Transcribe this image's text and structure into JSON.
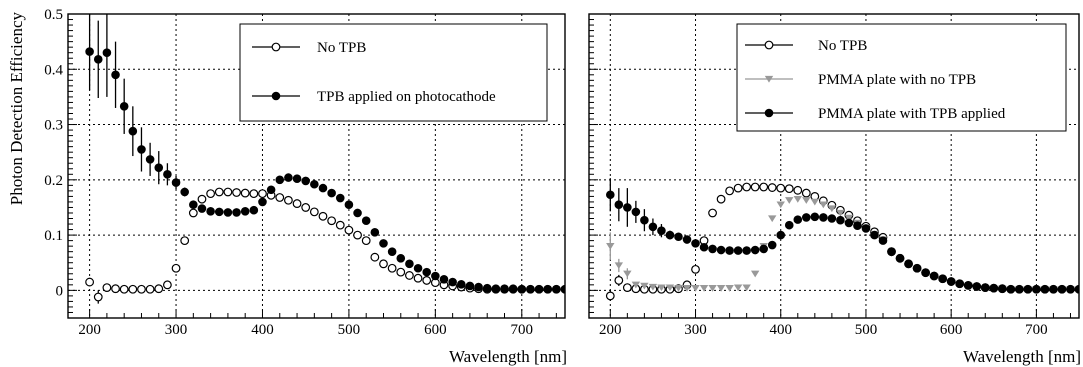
{
  "chart_data": [
    {
      "type": "scatter",
      "ylabel": "Photon Detection Efficiency",
      "xlabel": "Wavelength [nm]",
      "xlim": [
        175,
        750
      ],
      "ylim": [
        -0.05,
        0.5
      ],
      "xticks": [
        200,
        300,
        400,
        500,
        600,
        700
      ],
      "yticks": [
        0,
        0.1,
        0.2,
        0.3,
        0.4,
        0.5
      ],
      "ytick_labels": [
        "0",
        "0.1",
        "0.2",
        "0.3",
        "0.4",
        "0.5"
      ],
      "grid": "horizontal dotted",
      "legend_position": "top-right",
      "series": [
        {
          "name": "No TPB",
          "marker": "open-circle",
          "color": "#000000",
          "x": [
            200,
            210,
            220,
            230,
            240,
            250,
            260,
            270,
            280,
            290,
            300,
            310,
            320,
            330,
            340,
            350,
            360,
            370,
            380,
            390,
            400,
            410,
            420,
            430,
            440,
            450,
            460,
            470,
            480,
            490,
            500,
            510,
            520,
            530,
            540,
            550,
            560,
            570,
            580,
            590,
            600,
            610,
            620,
            630,
            640,
            650,
            660,
            670,
            680,
            690,
            700,
            710,
            720,
            730,
            740,
            750
          ],
          "y": [
            0.015,
            -0.012,
            0.005,
            0.003,
            0.002,
            0.002,
            0.002,
            0.002,
            0.003,
            0.01,
            0.04,
            0.09,
            0.14,
            0.165,
            0.175,
            0.178,
            0.178,
            0.177,
            0.176,
            0.175,
            0.175,
            0.172,
            0.168,
            0.163,
            0.157,
            0.15,
            0.142,
            0.134,
            0.126,
            0.118,
            0.109,
            0.1,
            0.09,
            0.06,
            0.048,
            0.04,
            0.033,
            0.027,
            0.022,
            0.018,
            0.014,
            0.01,
            0.008,
            0.006,
            0.004,
            0.003,
            0.002,
            0.002,
            0.002,
            0.002,
            0.002,
            0.002,
            0.002,
            0.002,
            0.002,
            0.002
          ],
          "yerr": [
            0.007,
            0.012,
            0.006,
            0.003,
            0.002,
            0.002,
            0.002,
            0.002,
            0.002,
            0.002,
            0,
            0,
            0,
            0,
            0,
            0,
            0,
            0,
            0,
            0,
            0,
            0,
            0,
            0,
            0,
            0,
            0,
            0,
            0,
            0,
            0,
            0,
            0,
            0,
            0,
            0,
            0,
            0,
            0,
            0,
            0,
            0,
            0,
            0,
            0,
            0,
            0,
            0,
            0,
            0,
            0,
            0,
            0,
            0,
            0,
            0
          ]
        },
        {
          "name": "TPB applied on photocathode",
          "marker": "filled-circle",
          "color": "#000000",
          "x": [
            200,
            210,
            220,
            230,
            240,
            250,
            260,
            270,
            280,
            290,
            300,
            310,
            320,
            330,
            340,
            350,
            360,
            370,
            380,
            390,
            400,
            410,
            420,
            430,
            440,
            450,
            460,
            470,
            480,
            490,
            500,
            510,
            520,
            530,
            540,
            550,
            560,
            570,
            580,
            590,
            600,
            610,
            620,
            630,
            640,
            650,
            660,
            670,
            680,
            690,
            700,
            710,
            720,
            730,
            740,
            750
          ],
          "y": [
            0.432,
            0.418,
            0.43,
            0.39,
            0.333,
            0.288,
            0.255,
            0.237,
            0.222,
            0.21,
            0.195,
            0.178,
            0.155,
            0.148,
            0.143,
            0.142,
            0.141,
            0.141,
            0.143,
            0.145,
            0.16,
            0.182,
            0.2,
            0.204,
            0.202,
            0.198,
            0.192,
            0.185,
            0.176,
            0.167,
            0.155,
            0.14,
            0.126,
            0.105,
            0.085,
            0.07,
            0.058,
            0.048,
            0.04,
            0.033,
            0.026,
            0.02,
            0.015,
            0.011,
            0.008,
            0.006,
            0.004,
            0.003,
            0.003,
            0.003,
            0.002,
            0.002,
            0.002,
            0.002,
            0.002,
            0.002
          ],
          "yerr": [
            0.07,
            0.07,
            0.08,
            0.06,
            0.05,
            0.045,
            0.04,
            0.03,
            0.03,
            0.02,
            0.012,
            0.008,
            0,
            0,
            0,
            0,
            0,
            0,
            0,
            0,
            0,
            0,
            0,
            0,
            0,
            0,
            0,
            0,
            0,
            0,
            0,
            0,
            0,
            0,
            0,
            0,
            0,
            0,
            0,
            0,
            0,
            0,
            0,
            0,
            0,
            0,
            0,
            0,
            0,
            0,
            0,
            0,
            0,
            0,
            0,
            0
          ]
        }
      ]
    },
    {
      "type": "scatter",
      "ylabel": "",
      "xlabel": "Wavelength [nm]",
      "xlim": [
        175,
        750
      ],
      "ylim": [
        -0.05,
        0.5
      ],
      "xticks": [
        200,
        300,
        400,
        500,
        600,
        700
      ],
      "yticks": [
        0,
        0.1,
        0.2,
        0.3,
        0.4,
        0.5
      ],
      "ytick_labels": [],
      "grid": "horizontal dotted",
      "legend_position": "top-right",
      "series": [
        {
          "name": "No TPB",
          "marker": "open-circle",
          "color": "#000000",
          "x": [
            200,
            210,
            220,
            230,
            240,
            250,
            260,
            270,
            280,
            290,
            300,
            310,
            320,
            330,
            340,
            350,
            360,
            370,
            380,
            390,
            400,
            410,
            420,
            430,
            440,
            450,
            460,
            470,
            480,
            490,
            500,
            510,
            520,
            530,
            540,
            550,
            560,
            570,
            580,
            590,
            600,
            610,
            620,
            630,
            640,
            650,
            660,
            670,
            680,
            690,
            700,
            710,
            720,
            730,
            740,
            750
          ],
          "y": [
            -0.01,
            0.018,
            0.005,
            0.003,
            0.002,
            0.002,
            0.002,
            0.002,
            0.003,
            0.01,
            0.038,
            0.09,
            0.14,
            0.165,
            0.18,
            0.185,
            0.187,
            0.187,
            0.187,
            0.186,
            0.185,
            0.184,
            0.181,
            0.176,
            0.17,
            0.162,
            0.154,
            0.145,
            0.136,
            0.126,
            0.116,
            0.106,
            0.096,
            0.07,
            0.058,
            0.048,
            0.04,
            0.032,
            0.026,
            0.021,
            0.016,
            0.012,
            0.009,
            0.007,
            0.005,
            0.004,
            0.003,
            0.002,
            0.002,
            0.002,
            0.002,
            0.002,
            0.002,
            0.002,
            0.002,
            0.002
          ],
          "yerr": [
            0.009,
            0.01,
            0.005,
            0.003,
            0.002,
            0.002,
            0.002,
            0.002,
            0.002,
            0.002,
            0,
            0,
            0,
            0,
            0,
            0,
            0,
            0,
            0,
            0,
            0,
            0,
            0,
            0,
            0,
            0,
            0,
            0,
            0,
            0,
            0,
            0,
            0,
            0,
            0,
            0,
            0,
            0,
            0,
            0,
            0,
            0,
            0,
            0,
            0,
            0,
            0,
            0,
            0,
            0,
            0,
            0,
            0,
            0,
            0,
            0
          ]
        },
        {
          "name": "PMMA plate with no TPB",
          "marker": "down-triangle",
          "color": "#999999",
          "x": [
            200,
            210,
            220,
            230,
            240,
            250,
            260,
            270,
            280,
            290,
            300,
            310,
            320,
            330,
            340,
            350,
            360,
            370,
            380,
            390,
            400,
            410,
            420,
            430,
            440,
            450,
            460,
            470,
            480,
            490,
            500,
            510,
            520,
            530,
            540,
            550,
            560,
            570,
            580,
            590,
            600,
            610,
            620,
            630,
            640,
            650,
            660,
            670,
            680,
            690,
            700,
            710,
            720,
            730,
            740,
            750
          ],
          "y": [
            0.08,
            0.045,
            0.03,
            0.01,
            0.008,
            0.006,
            0.005,
            0.005,
            0.004,
            0.004,
            0.004,
            0.004,
            0.004,
            0.004,
            0.004,
            0.005,
            0.005,
            0.03,
            0.08,
            0.13,
            0.155,
            0.163,
            0.165,
            0.163,
            0.16,
            0.155,
            0.148,
            0.14,
            0.131,
            0.122,
            0.112,
            0.102,
            0.092,
            0.067,
            0.055,
            0.046,
            0.038,
            0.031,
            0.025,
            0.02,
            0.015,
            0.011,
            0.008,
            0.006,
            0.004,
            0.003,
            0.003,
            0.002,
            0.002,
            0.002,
            0.002,
            0.002,
            0.002,
            0.002,
            0.002,
            0.002
          ],
          "yerr": [
            0.025,
            0.012,
            0.01,
            0.005,
            0.003,
            0.002,
            0.002,
            0.002,
            0.002,
            0.002,
            0.002,
            0.002,
            0.002,
            0.002,
            0.002,
            0,
            0,
            0,
            0,
            0,
            0,
            0,
            0,
            0,
            0,
            0,
            0,
            0,
            0,
            0,
            0,
            0,
            0,
            0,
            0,
            0,
            0,
            0,
            0,
            0,
            0,
            0,
            0,
            0,
            0,
            0,
            0,
            0,
            0,
            0,
            0,
            0,
            0,
            0,
            0,
            0
          ]
        },
        {
          "name": "PMMA plate with TPB applied",
          "marker": "filled-circle",
          "color": "#000000",
          "x": [
            200,
            210,
            220,
            230,
            240,
            250,
            260,
            270,
            280,
            290,
            300,
            310,
            320,
            330,
            340,
            350,
            360,
            370,
            380,
            390,
            400,
            410,
            420,
            430,
            440,
            450,
            460,
            470,
            480,
            490,
            500,
            510,
            520,
            530,
            540,
            550,
            560,
            570,
            580,
            590,
            600,
            610,
            620,
            630,
            640,
            650,
            660,
            670,
            680,
            690,
            700,
            710,
            720,
            730,
            740,
            750
          ],
          "y": [
            0.173,
            0.155,
            0.15,
            0.142,
            0.127,
            0.115,
            0.108,
            0.1,
            0.097,
            0.092,
            0.085,
            0.078,
            0.075,
            0.073,
            0.072,
            0.072,
            0.072,
            0.073,
            0.075,
            0.082,
            0.1,
            0.118,
            0.128,
            0.132,
            0.133,
            0.132,
            0.13,
            0.127,
            0.122,
            0.117,
            0.112,
            0.1,
            0.09,
            0.07,
            0.058,
            0.048,
            0.04,
            0.032,
            0.026,
            0.021,
            0.016,
            0.012,
            0.009,
            0.007,
            0.005,
            0.004,
            0.003,
            0.002,
            0.002,
            0.002,
            0.002,
            0.002,
            0.002,
            0.002,
            0.002,
            0.002
          ],
          "yerr": [
            0.03,
            0.03,
            0.035,
            0.02,
            0.02,
            0.015,
            0.012,
            0.008,
            0.006,
            0.004,
            0,
            0,
            0,
            0,
            0,
            0,
            0,
            0,
            0,
            0,
            0,
            0,
            0,
            0,
            0,
            0,
            0,
            0,
            0,
            0,
            0,
            0,
            0,
            0,
            0,
            0,
            0,
            0,
            0,
            0,
            0,
            0,
            0,
            0,
            0,
            0,
            0,
            0,
            0,
            0,
            0,
            0,
            0,
            0,
            0,
            0
          ]
        }
      ]
    }
  ]
}
